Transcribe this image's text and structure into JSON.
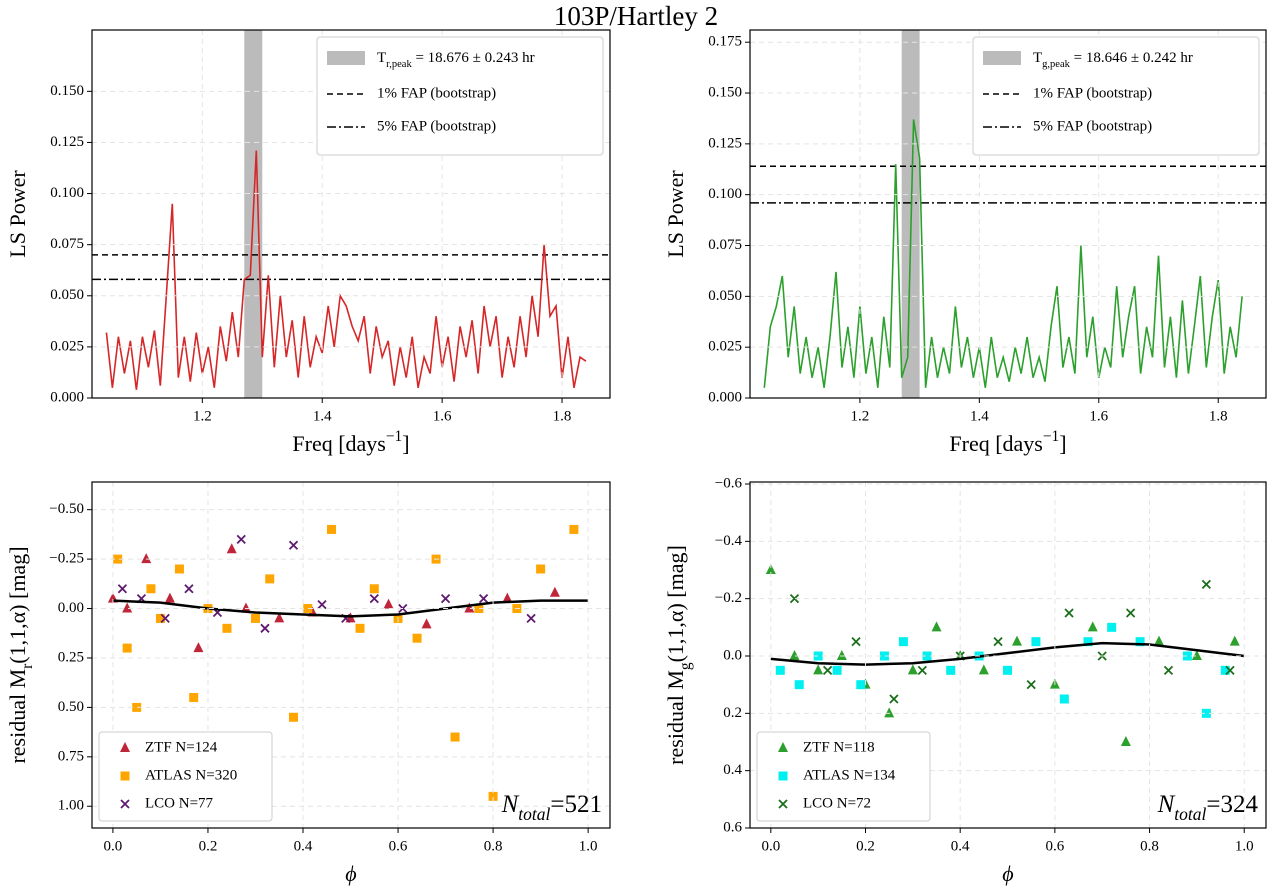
{
  "title": "103P/Hartley 2",
  "chart_data": [
    {
      "type": "line",
      "x": [
        1.04,
        1.05,
        1.06,
        1.07,
        1.08,
        1.09,
        1.1,
        1.11,
        1.12,
        1.13,
        1.14,
        1.15,
        1.16,
        1.17,
        1.18,
        1.19,
        1.2,
        1.21,
        1.22,
        1.23,
        1.24,
        1.25,
        1.26,
        1.27,
        1.28,
        1.29,
        1.3,
        1.31,
        1.32,
        1.33,
        1.34,
        1.35,
        1.36,
        1.37,
        1.38,
        1.39,
        1.4,
        1.41,
        1.42,
        1.43,
        1.44,
        1.45,
        1.46,
        1.47,
        1.48,
        1.49,
        1.5,
        1.51,
        1.52,
        1.53,
        1.54,
        1.55,
        1.56,
        1.57,
        1.58,
        1.59,
        1.6,
        1.61,
        1.62,
        1.63,
        1.64,
        1.65,
        1.66,
        1.67,
        1.68,
        1.69,
        1.7,
        1.71,
        1.72,
        1.73,
        1.74,
        1.75,
        1.76,
        1.77,
        1.78,
        1.79,
        1.8,
        1.81,
        1.82,
        1.83,
        1.84
      ],
      "series": [
        {
          "color": "#d62728",
          "values": [
            0.032,
            0.005,
            0.03,
            0.012,
            0.028,
            0.004,
            0.03,
            0.015,
            0.033,
            0.006,
            0.05,
            0.095,
            0.01,
            0.03,
            0.008,
            0.032,
            0.012,
            0.025,
            0.005,
            0.035,
            0.018,
            0.042,
            0.02,
            0.058,
            0.06,
            0.121,
            0.02,
            0.06,
            0.015,
            0.05,
            0.02,
            0.038,
            0.01,
            0.04,
            0.015,
            0.03,
            0.022,
            0.045,
            0.025,
            0.05,
            0.045,
            0.035,
            0.028,
            0.04,
            0.012,
            0.035,
            0.02,
            0.028,
            0.006,
            0.025,
            0.01,
            0.03,
            0.005,
            0.02,
            0.012,
            0.04,
            0.015,
            0.03,
            0.008,
            0.035,
            0.02,
            0.038,
            0.012,
            0.045,
            0.025,
            0.04,
            0.01,
            0.03,
            0.015,
            0.04,
            0.02,
            0.05,
            0.03,
            0.075,
            0.04,
            0.045,
            0.01,
            0.03,
            0.005,
            0.02,
            0.018
          ]
        }
      ],
      "band": {
        "x": [
          1.27,
          1.3
        ],
        "color": "#bbbbbb",
        "label": [
          {
            "text": "T"
          },
          {
            "text": "r,peak",
            "sub": true
          },
          {
            "text": " = 18.676 ± 0.243 hr"
          }
        ]
      },
      "hlines": [
        {
          "value": 0.07,
          "style": "dashed",
          "label": "1% FAP (bootstrap)"
        },
        {
          "value": 0.058,
          "style": "dashdot",
          "label": "5% FAP (bootstrap)"
        }
      ],
      "legend": "upper right",
      "xlabel": [
        {
          "text": "Freq [days"
        },
        {
          "text": "−1",
          "sup": true
        },
        {
          "text": "]"
        }
      ],
      "ylabel": [
        {
          "text": "LS Power"
        }
      ],
      "xlim": [
        1.016,
        1.88
      ],
      "xticks": [
        1.2,
        1.4,
        1.6,
        1.8
      ],
      "ylim": [
        0,
        0.18
      ],
      "yticks": [
        {
          "value": 0,
          "label": "0.000"
        },
        {
          "value": 0.025,
          "label": "0.025"
        },
        {
          "value": 0.05,
          "label": "0.050"
        },
        {
          "value": 0.075,
          "label": "0.075"
        },
        {
          "value": 0.1,
          "label": "0.100"
        },
        {
          "value": 0.125,
          "label": "0.125"
        },
        {
          "value": 0.15,
          "label": "0.150"
        }
      ],
      "grid": true
    },
    {
      "type": "line",
      "x": [
        1.04,
        1.05,
        1.06,
        1.07,
        1.08,
        1.09,
        1.1,
        1.11,
        1.12,
        1.13,
        1.14,
        1.15,
        1.16,
        1.17,
        1.18,
        1.19,
        1.2,
        1.21,
        1.22,
        1.23,
        1.24,
        1.25,
        1.26,
        1.27,
        1.28,
        1.29,
        1.3,
        1.31,
        1.32,
        1.33,
        1.34,
        1.35,
        1.36,
        1.37,
        1.38,
        1.39,
        1.4,
        1.41,
        1.42,
        1.43,
        1.44,
        1.45,
        1.46,
        1.47,
        1.48,
        1.49,
        1.5,
        1.51,
        1.52,
        1.53,
        1.54,
        1.55,
        1.56,
        1.57,
        1.58,
        1.59,
        1.6,
        1.61,
        1.62,
        1.63,
        1.64,
        1.65,
        1.66,
        1.67,
        1.68,
        1.69,
        1.7,
        1.71,
        1.72,
        1.73,
        1.74,
        1.75,
        1.76,
        1.77,
        1.78,
        1.79,
        1.8,
        1.81,
        1.82,
        1.83,
        1.84
      ],
      "series": [
        {
          "color": "#2ca02c",
          "values": [
            0.005,
            0.035,
            0.045,
            0.06,
            0.02,
            0.045,
            0.012,
            0.03,
            0.01,
            0.025,
            0.005,
            0.03,
            0.062,
            0.015,
            0.035,
            0.01,
            0.045,
            0.012,
            0.03,
            0.005,
            0.04,
            0.015,
            0.115,
            0.01,
            0.02,
            0.137,
            0.118,
            0.005,
            0.03,
            0.01,
            0.025,
            0.012,
            0.045,
            0.015,
            0.03,
            0.01,
            0.025,
            0.005,
            0.03,
            0.01,
            0.02,
            0.008,
            0.025,
            0.012,
            0.03,
            0.01,
            0.02,
            0.008,
            0.035,
            0.055,
            0.015,
            0.03,
            0.012,
            0.075,
            0.02,
            0.04,
            0.01,
            0.025,
            0.015,
            0.055,
            0.02,
            0.04,
            0.055,
            0.012,
            0.035,
            0.02,
            0.07,
            0.015,
            0.04,
            0.01,
            0.048,
            0.012,
            0.035,
            0.06,
            0.015,
            0.04,
            0.058,
            0.012,
            0.035,
            0.02,
            0.05
          ]
        }
      ],
      "band": {
        "x": [
          1.27,
          1.3
        ],
        "color": "#bbbbbb",
        "label": [
          {
            "text": "T"
          },
          {
            "text": "g,peak",
            "sub": true
          },
          {
            "text": " = 18.646 ± 0.242 hr"
          }
        ]
      },
      "hlines": [
        {
          "value": 0.114,
          "style": "dashed",
          "label": "1% FAP (bootstrap)"
        },
        {
          "value": 0.096,
          "style": "dashdot",
          "label": "5% FAP (bootstrap)"
        }
      ],
      "legend": "upper right",
      "xlabel": [
        {
          "text": "Freq [days"
        },
        {
          "text": "−1",
          "sup": true
        },
        {
          "text": "]"
        }
      ],
      "ylabel": [
        {
          "text": "LS Power"
        }
      ],
      "xlim": [
        1.016,
        1.88
      ],
      "xticks": [
        1.2,
        1.4,
        1.6,
        1.8
      ],
      "ylim": [
        0,
        0.181
      ],
      "yticks": [
        {
          "value": 0,
          "label": "0.000"
        },
        {
          "value": 0.025,
          "label": "0.025"
        },
        {
          "value": 0.05,
          "label": "0.050"
        },
        {
          "value": 0.075,
          "label": "0.075"
        },
        {
          "value": 0.1,
          "label": "0.100"
        },
        {
          "value": 0.125,
          "label": "0.125"
        },
        {
          "value": 0.15,
          "label": "0.150"
        },
        {
          "value": 0.175,
          "label": "0.175"
        }
      ],
      "grid": true
    },
    {
      "type": "scatter",
      "series": [
        {
          "name": "ZTF N=124",
          "color": "#c0263a",
          "marker": "triangle",
          "x": [
            0.0,
            0.03,
            0.07,
            0.12,
            0.18,
            0.25,
            0.28,
            0.35,
            0.42,
            0.5,
            0.58,
            0.66,
            0.75,
            0.83,
            0.93
          ],
          "values": [
            -0.05,
            0.0,
            -0.25,
            -0.05,
            0.2,
            -0.3,
            0.0,
            0.05,
            0.02,
            0.05,
            -0.02,
            0.08,
            0.0,
            -0.05,
            -0.08
          ]
        },
        {
          "name": "ATLAS N=320",
          "color": "#ffa500",
          "marker": "square",
          "x": [
            0.01,
            0.03,
            0.05,
            0.08,
            0.1,
            0.14,
            0.17,
            0.2,
            0.24,
            0.3,
            0.33,
            0.38,
            0.41,
            0.46,
            0.52,
            0.55,
            0.6,
            0.64,
            0.68,
            0.72,
            0.77,
            0.8,
            0.85,
            0.9,
            0.97
          ],
          "values": [
            -0.25,
            0.2,
            0.5,
            -0.1,
            0.05,
            -0.2,
            0.45,
            0.0,
            0.1,
            0.05,
            -0.15,
            0.55,
            0.0,
            -0.4,
            0.1,
            -0.1,
            0.05,
            0.15,
            -0.25,
            0.65,
            0.0,
            0.95,
            0.0,
            -0.2,
            -0.4
          ]
        },
        {
          "name": "LCO N=77",
          "color": "#5e1a6e",
          "marker": "x",
          "x": [
            0.02,
            0.06,
            0.11,
            0.16,
            0.22,
            0.27,
            0.32,
            0.38,
            0.44,
            0.49,
            0.55,
            0.61,
            0.7,
            0.78,
            0.88
          ],
          "values": [
            -0.1,
            -0.05,
            0.05,
            -0.1,
            0.02,
            -0.35,
            0.1,
            -0.32,
            -0.02,
            0.05,
            -0.05,
            0.0,
            -0.05,
            -0.05,
            0.05
          ]
        }
      ],
      "fit": {
        "color": "#000000",
        "x": [
          0,
          0.1,
          0.2,
          0.3,
          0.4,
          0.5,
          0.6,
          0.7,
          0.8,
          0.9,
          1.0
        ],
        "values": [
          -0.04,
          -0.03,
          0.0,
          0.02,
          0.03,
          0.04,
          0.03,
          0.0,
          -0.03,
          -0.04,
          -0.04
        ]
      },
      "annotation": [
        {
          "text": "N",
          "italic": true
        },
        {
          "text": "total",
          "sub": true,
          "italic": true
        },
        {
          "text": "=521"
        }
      ],
      "legend": "lower left",
      "xlabel": [
        {
          "text": "ϕ",
          "italic": true
        }
      ],
      "ylabel": [
        {
          "text": "residual M"
        },
        {
          "text": "r",
          "sub": true
        },
        {
          "text": "(1,1,α) [mag]"
        }
      ],
      "xlim": [
        -0.044,
        1.046
      ],
      "xticks": [
        {
          "value": 0,
          "label": "0.0"
        },
        0.2,
        0.4,
        0.6,
        0.8,
        {
          "value": 1,
          "label": "1.0"
        }
      ],
      "ylim": [
        1.11,
        -0.64
      ],
      "yticks": [
        {
          "value": -0.5,
          "label": "−0.50"
        },
        {
          "value": -0.25,
          "label": "−0.25"
        },
        {
          "value": 0,
          "label": "0.00"
        },
        0.25,
        {
          "value": 0.5,
          "label": "0.50"
        },
        0.75,
        {
          "value": 1,
          "label": "1.00"
        }
      ],
      "grid": true
    },
    {
      "type": "scatter",
      "series": [
        {
          "name": "ZTF N=118",
          "color": "#2ca02c",
          "marker": "triangle",
          "x": [
            0.0,
            0.05,
            0.1,
            0.15,
            0.2,
            0.25,
            0.3,
            0.35,
            0.4,
            0.45,
            0.52,
            0.6,
            0.68,
            0.75,
            0.82,
            0.9,
            0.98
          ],
          "values": [
            -0.3,
            0.0,
            0.05,
            0.0,
            0.1,
            0.2,
            0.05,
            -0.1,
            0.0,
            0.05,
            -0.05,
            0.1,
            -0.1,
            0.3,
            -0.05,
            0.0,
            -0.05
          ]
        },
        {
          "name": "ATLAS N=134",
          "color": "#00f0f0",
          "marker": "square",
          "x": [
            0.02,
            0.06,
            0.1,
            0.14,
            0.19,
            0.24,
            0.28,
            0.33,
            0.38,
            0.44,
            0.5,
            0.56,
            0.62,
            0.67,
            0.72,
            0.78,
            0.88,
            0.92,
            0.96
          ],
          "values": [
            0.05,
            0.1,
            0.0,
            0.05,
            0.1,
            0.0,
            -0.05,
            0.0,
            0.05,
            0.0,
            0.05,
            -0.05,
            0.15,
            -0.05,
            -0.1,
            -0.05,
            0.0,
            0.2,
            0.05
          ]
        },
        {
          "name": "LCO N=72",
          "color": "#1b6e1b",
          "marker": "x",
          "x": [
            0.05,
            0.12,
            0.18,
            0.26,
            0.32,
            0.4,
            0.48,
            0.55,
            0.63,
            0.7,
            0.76,
            0.84,
            0.92,
            0.97
          ],
          "values": [
            -0.2,
            0.05,
            -0.05,
            0.15,
            0.05,
            0.0,
            -0.05,
            0.1,
            -0.15,
            0.0,
            -0.15,
            0.05,
            -0.25,
            0.05
          ]
        }
      ],
      "fit": {
        "color": "#000000",
        "x": [
          0,
          0.1,
          0.2,
          0.3,
          0.4,
          0.5,
          0.6,
          0.7,
          0.8,
          0.9,
          1.0
        ],
        "values": [
          0.01,
          0.025,
          0.03,
          0.025,
          0.01,
          -0.01,
          -0.03,
          -0.045,
          -0.04,
          -0.02,
          0.0
        ]
      },
      "annotation": [
        {
          "text": "N",
          "italic": true
        },
        {
          "text": "total",
          "sub": true,
          "italic": true
        },
        {
          "text": "=324"
        }
      ],
      "legend": "lower left",
      "xlabel": [
        {
          "text": "ϕ",
          "italic": true
        }
      ],
      "ylabel": [
        {
          "text": "residual M"
        },
        {
          "text": "g",
          "sub": true
        },
        {
          "text": "(1,1,α) [mag]"
        }
      ],
      "xlim": [
        -0.044,
        1.046
      ],
      "xticks": [
        {
          "value": 0,
          "label": "0.0"
        },
        0.2,
        0.4,
        0.6,
        0.8,
        {
          "value": 1,
          "label": "1.0"
        }
      ],
      "ylim": [
        0.6,
        -0.607
      ],
      "yticks": [
        {
          "value": -0.6,
          "label": "−0.6"
        },
        {
          "value": -0.4,
          "label": "−0.4"
        },
        {
          "value": -0.2,
          "label": "−0.2"
        },
        {
          "value": 0,
          "label": "0.0"
        },
        0.2,
        0.4,
        0.6
      ],
      "grid": true
    }
  ]
}
